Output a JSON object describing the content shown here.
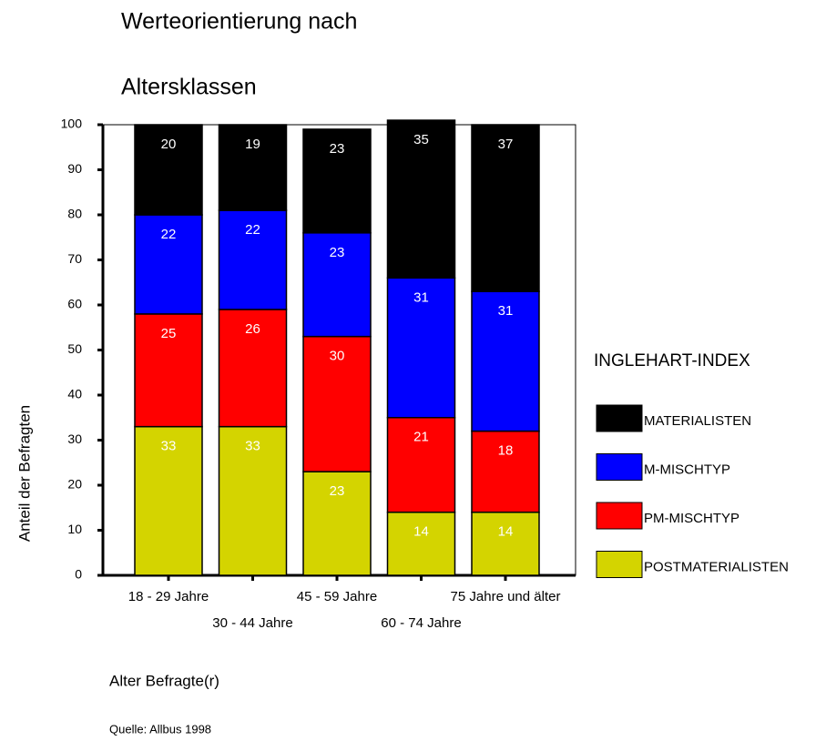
{
  "chart_data": {
    "type": "stacked_bar",
    "title": [
      "Werteorientierung nach",
      "Altersklassen"
    ],
    "xlabel": "Alter Befragte(r)",
    "ylabel": "Anteil der Befragten",
    "source": "Quelle: Allbus 1998",
    "legend_title": "INGLEHART-INDEX",
    "legend": "right",
    "categories": [
      "18 - 29 Jahre",
      "30 - 44 Jahre",
      "45 - 59 Jahre",
      "60 - 74 Jahre",
      "75 Jahre und älter"
    ],
    "series": [
      {
        "name": "POSTMATERIALISTEN",
        "color": "#d4d400",
        "values": [
          33,
          33,
          23,
          14,
          14
        ]
      },
      {
        "name": "PM-MISCHTYP",
        "color": "#ff0000",
        "values": [
          25,
          26,
          30,
          21,
          18
        ]
      },
      {
        "name": "M-MISCHTYP",
        "color": "#0000ff",
        "values": [
          22,
          22,
          23,
          31,
          31
        ]
      },
      {
        "name": "MATERIALISTEN",
        "color": "#000000",
        "values": [
          20,
          19,
          23,
          35,
          37
        ]
      }
    ],
    "ylim": [
      0,
      100
    ],
    "yticks": [
      0,
      10,
      20,
      30,
      40,
      50,
      60,
      70,
      80,
      90,
      100
    ]
  }
}
